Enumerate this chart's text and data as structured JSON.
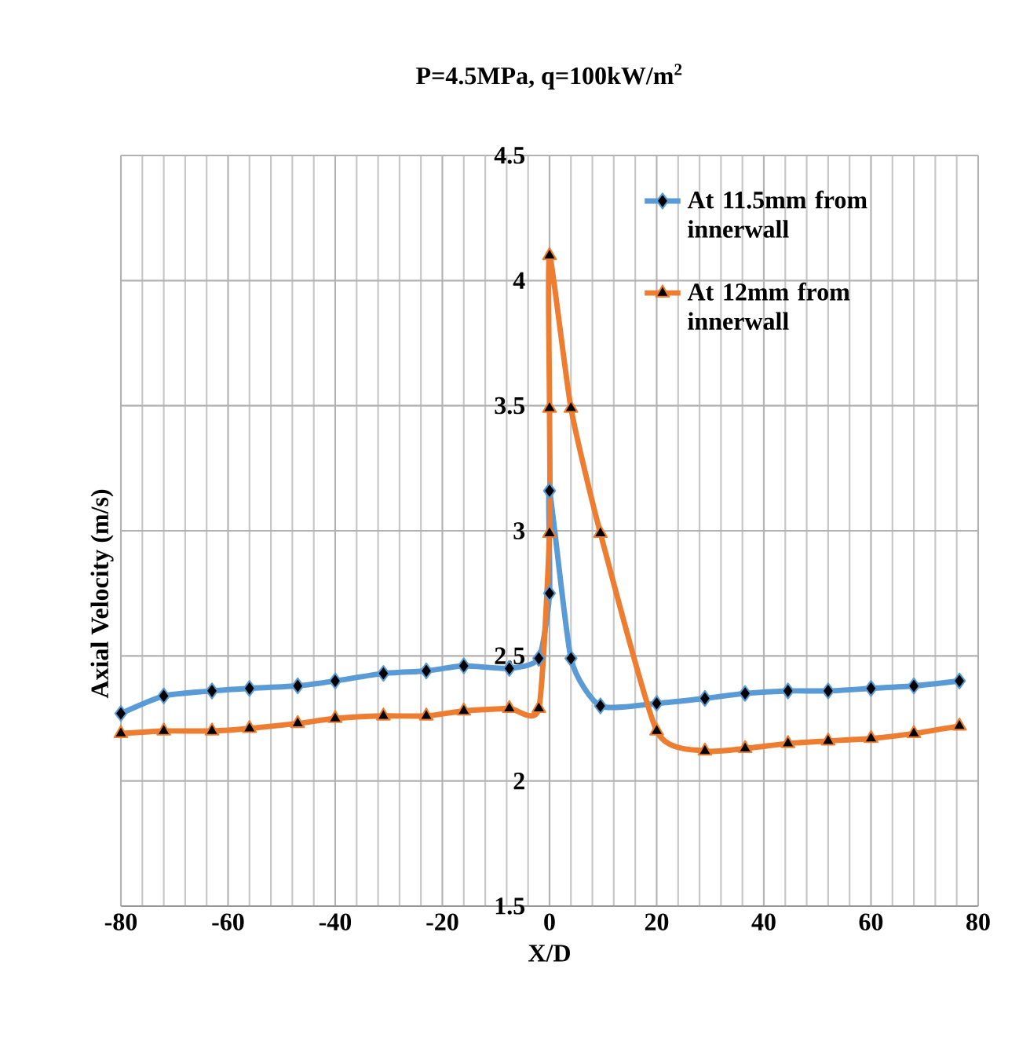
{
  "chart_data": {
    "type": "line",
    "title": "P=4.5MPa, q=100kW/m$^{2}$",
    "xlabel": "X/D",
    "ylabel": "Axial Velocity (m/s)",
    "series": [
      {
        "name": "At 11.5mm from innerwall",
        "color": "#5b9bd5",
        "marker": "diamond",
        "x": [
          -80,
          -72,
          -63,
          -56,
          -47,
          -40,
          -31,
          -23,
          -16,
          -7.5,
          -2,
          0,
          0,
          4,
          9.5,
          20,
          29,
          36.5,
          44.5,
          52,
          60,
          68,
          76.5
        ],
        "values": [
          2.27,
          2.34,
          2.36,
          2.37,
          2.38,
          2.4,
          2.43,
          2.44,
          2.46,
          2.45,
          2.49,
          2.75,
          3.16,
          2.49,
          2.3,
          2.31,
          2.33,
          2.35,
          2.36,
          2.36,
          2.37,
          2.38,
          2.4
        ]
      },
      {
        "name": "At 12mm from innerwall",
        "color": "#ed7d31",
        "marker": "triangle",
        "x": [
          -80,
          -72,
          -63,
          -56,
          -47,
          -40,
          -31,
          -23,
          -16,
          -7.5,
          -2,
          0,
          0,
          0,
          4,
          9.5,
          20,
          29,
          36.5,
          44.5,
          52,
          60,
          68,
          76.5
        ],
        "values": [
          2.19,
          2.2,
          2.2,
          2.21,
          2.23,
          2.25,
          2.26,
          2.26,
          2.28,
          2.29,
          2.29,
          2.99,
          3.49,
          4.1,
          3.49,
          2.99,
          2.2,
          2.12,
          2.13,
          2.15,
          2.16,
          2.17,
          2.19,
          2.22
        ]
      }
    ],
    "xlim": [
      -80,
      80
    ],
    "xticks": [
      -80,
      -60,
      -40,
      -20,
      0,
      20,
      40,
      60,
      80
    ],
    "ylim": [
      1.5,
      4.5
    ],
    "yticks": [
      1.5,
      2,
      2.5,
      3,
      3.5,
      4,
      4.5
    ],
    "grid": true,
    "legend": "top right",
    "line_style": "solid"
  }
}
